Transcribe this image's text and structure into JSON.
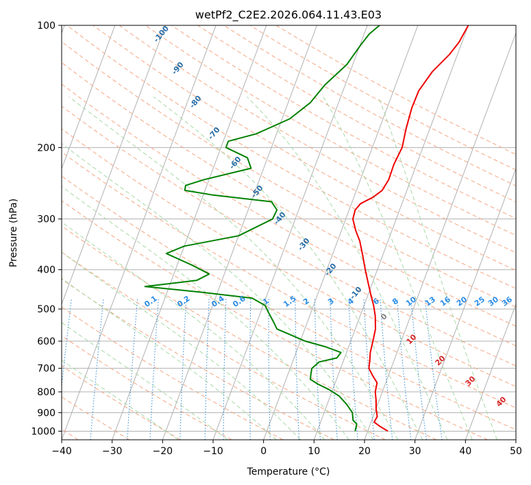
{
  "chart_data": {
    "type": "line",
    "title": "wetPf2_C2E2.2026.064.11.43.E03",
    "xlabel": "Temperature (°C)",
    "ylabel": "Pressure (hPa)",
    "xlim": [
      -40,
      50
    ],
    "ylim": [
      1050,
      100
    ],
    "y_scale": "log",
    "grid": true,
    "x_ticks": [
      -40,
      -30,
      -20,
      -10,
      0,
      10,
      20,
      30,
      40,
      50
    ],
    "y_ticks": [
      100,
      200,
      300,
      400,
      500,
      600,
      700,
      800,
      900,
      1000
    ],
    "series": [
      {
        "color": "#ee0000",
        "points": [
          {
            "p": 1000,
            "t": 24
          },
          {
            "p": 975,
            "t": 22.2
          },
          {
            "p": 950,
            "t": 20.6
          },
          {
            "p": 920,
            "t": 20.8
          },
          {
            "p": 880,
            "t": 20.0
          },
          {
            "p": 840,
            "t": 19.4
          },
          {
            "p": 800,
            "t": 18.6
          },
          {
            "p": 760,
            "t": 18.3
          },
          {
            "p": 730,
            "t": 16.9
          },
          {
            "p": 700,
            "t": 15.6
          },
          {
            "p": 670,
            "t": 15.2
          },
          {
            "p": 640,
            "t": 14.7
          },
          {
            "p": 600,
            "t": 14.4
          },
          {
            "p": 560,
            "t": 14.0
          },
          {
            "p": 520,
            "t": 13.0
          },
          {
            "p": 490,
            "t": 11.9
          },
          {
            "p": 460,
            "t": 10.5
          },
          {
            "p": 430,
            "t": 9.1
          },
          {
            "p": 400,
            "t": 7.6
          },
          {
            "p": 370,
            "t": 6.1
          },
          {
            "p": 340,
            "t": 4.4
          },
          {
            "p": 320,
            "t": 2.8
          },
          {
            "p": 300,
            "t": 1.4
          },
          {
            "p": 285,
            "t": 1.2
          },
          {
            "p": 275,
            "t": 1.8
          },
          {
            "p": 265,
            "t": 3.8
          },
          {
            "p": 255,
            "t": 5.1
          },
          {
            "p": 240,
            "t": 5.6
          },
          {
            "p": 220,
            "t": 5.5
          },
          {
            "p": 200,
            "t": 5.9
          },
          {
            "p": 180,
            "t": 5.3
          },
          {
            "p": 160,
            "t": 4.9
          },
          {
            "p": 145,
            "t": 5.0
          },
          {
            "p": 130,
            "t": 6.3
          },
          {
            "p": 118,
            "t": 8.4
          },
          {
            "p": 110,
            "t": 9.4
          },
          {
            "p": 100,
            "t": 10.0
          }
        ]
      },
      {
        "color": "#008000",
        "points": [
          {
            "p": 1000,
            "t": 17.5
          },
          {
            "p": 960,
            "t": 17.3
          },
          {
            "p": 940,
            "t": 16.3
          },
          {
            "p": 900,
            "t": 15.6
          },
          {
            "p": 860,
            "t": 13.9
          },
          {
            "p": 820,
            "t": 11.8
          },
          {
            "p": 790,
            "t": 9.3
          },
          {
            "p": 765,
            "t": 6.6
          },
          {
            "p": 745,
            "t": 4.8
          },
          {
            "p": 720,
            "t": 4.5
          },
          {
            "p": 700,
            "t": 4.3
          },
          {
            "p": 675,
            "t": 5.3
          },
          {
            "p": 660,
            "t": 8.5
          },
          {
            "p": 640,
            "t": 8.9
          },
          {
            "p": 620,
            "t": 5.5
          },
          {
            "p": 600,
            "t": 1.0
          },
          {
            "p": 580,
            "t": -2.2
          },
          {
            "p": 560,
            "t": -5.5
          },
          {
            "p": 540,
            "t": -6.6
          },
          {
            "p": 510,
            "t": -8.4
          },
          {
            "p": 490,
            "t": -9.6
          },
          {
            "p": 470,
            "t": -12.7
          },
          {
            "p": 455,
            "t": -23.0
          },
          {
            "p": 440,
            "t": -34.8
          },
          {
            "p": 425,
            "t": -25.0
          },
          {
            "p": 410,
            "t": -23.0
          },
          {
            "p": 390,
            "t": -27.0
          },
          {
            "p": 365,
            "t": -33.0
          },
          {
            "p": 350,
            "t": -30.0
          },
          {
            "p": 330,
            "t": -20.0
          },
          {
            "p": 300,
            "t": -14.5
          },
          {
            "p": 285,
            "t": -14.3
          },
          {
            "p": 272,
            "t": -16.0
          },
          {
            "p": 262,
            "t": -28.0
          },
          {
            "p": 255,
            "t": -34.0
          },
          {
            "p": 248,
            "t": -34.2
          },
          {
            "p": 240,
            "t": -31.0
          },
          {
            "p": 225,
            "t": -22.5
          },
          {
            "p": 212,
            "t": -24.0
          },
          {
            "p": 200,
            "t": -29.0
          },
          {
            "p": 193,
            "t": -29.0
          },
          {
            "p": 185,
            "t": -24.0
          },
          {
            "p": 170,
            "t": -18.5
          },
          {
            "p": 155,
            "t": -15.6
          },
          {
            "p": 140,
            "t": -14.0
          },
          {
            "p": 125,
            "t": -11.2
          },
          {
            "p": 112,
            "t": -9.9
          },
          {
            "p": 105,
            "t": -9.0
          },
          {
            "p": 100,
            "t": -7.6
          }
        ]
      }
    ],
    "dry_adiabat_labels": [
      "-100",
      "-90",
      "-80",
      "-70",
      "-60",
      "-50",
      "-40",
      "-30",
      "-20",
      "-10"
    ],
    "mixing_ratio_labels": [
      "0.1",
      "0.2",
      "0.4",
      "0.6",
      "1",
      "1.5",
      "2",
      "3",
      "4",
      "6",
      "8",
      "10",
      "13",
      "16",
      "20",
      "25",
      "30",
      "36"
    ],
    "moist_adiabat_labels": [
      "0",
      "10",
      "20",
      "30",
      "40"
    ],
    "colors": {
      "isotherm": "#b0b0b0",
      "isobar": "#b0b0b0",
      "dry_adiabat": "#f4a582",
      "moist_adiabat": "#a6d9a6",
      "mixing_ratio": "#3a8fd6",
      "dry_label": "#2a6fa8",
      "mixing_label": "#2b8de6",
      "moist_label_zero": "#808080",
      "moist_label": "#d62728"
    }
  }
}
